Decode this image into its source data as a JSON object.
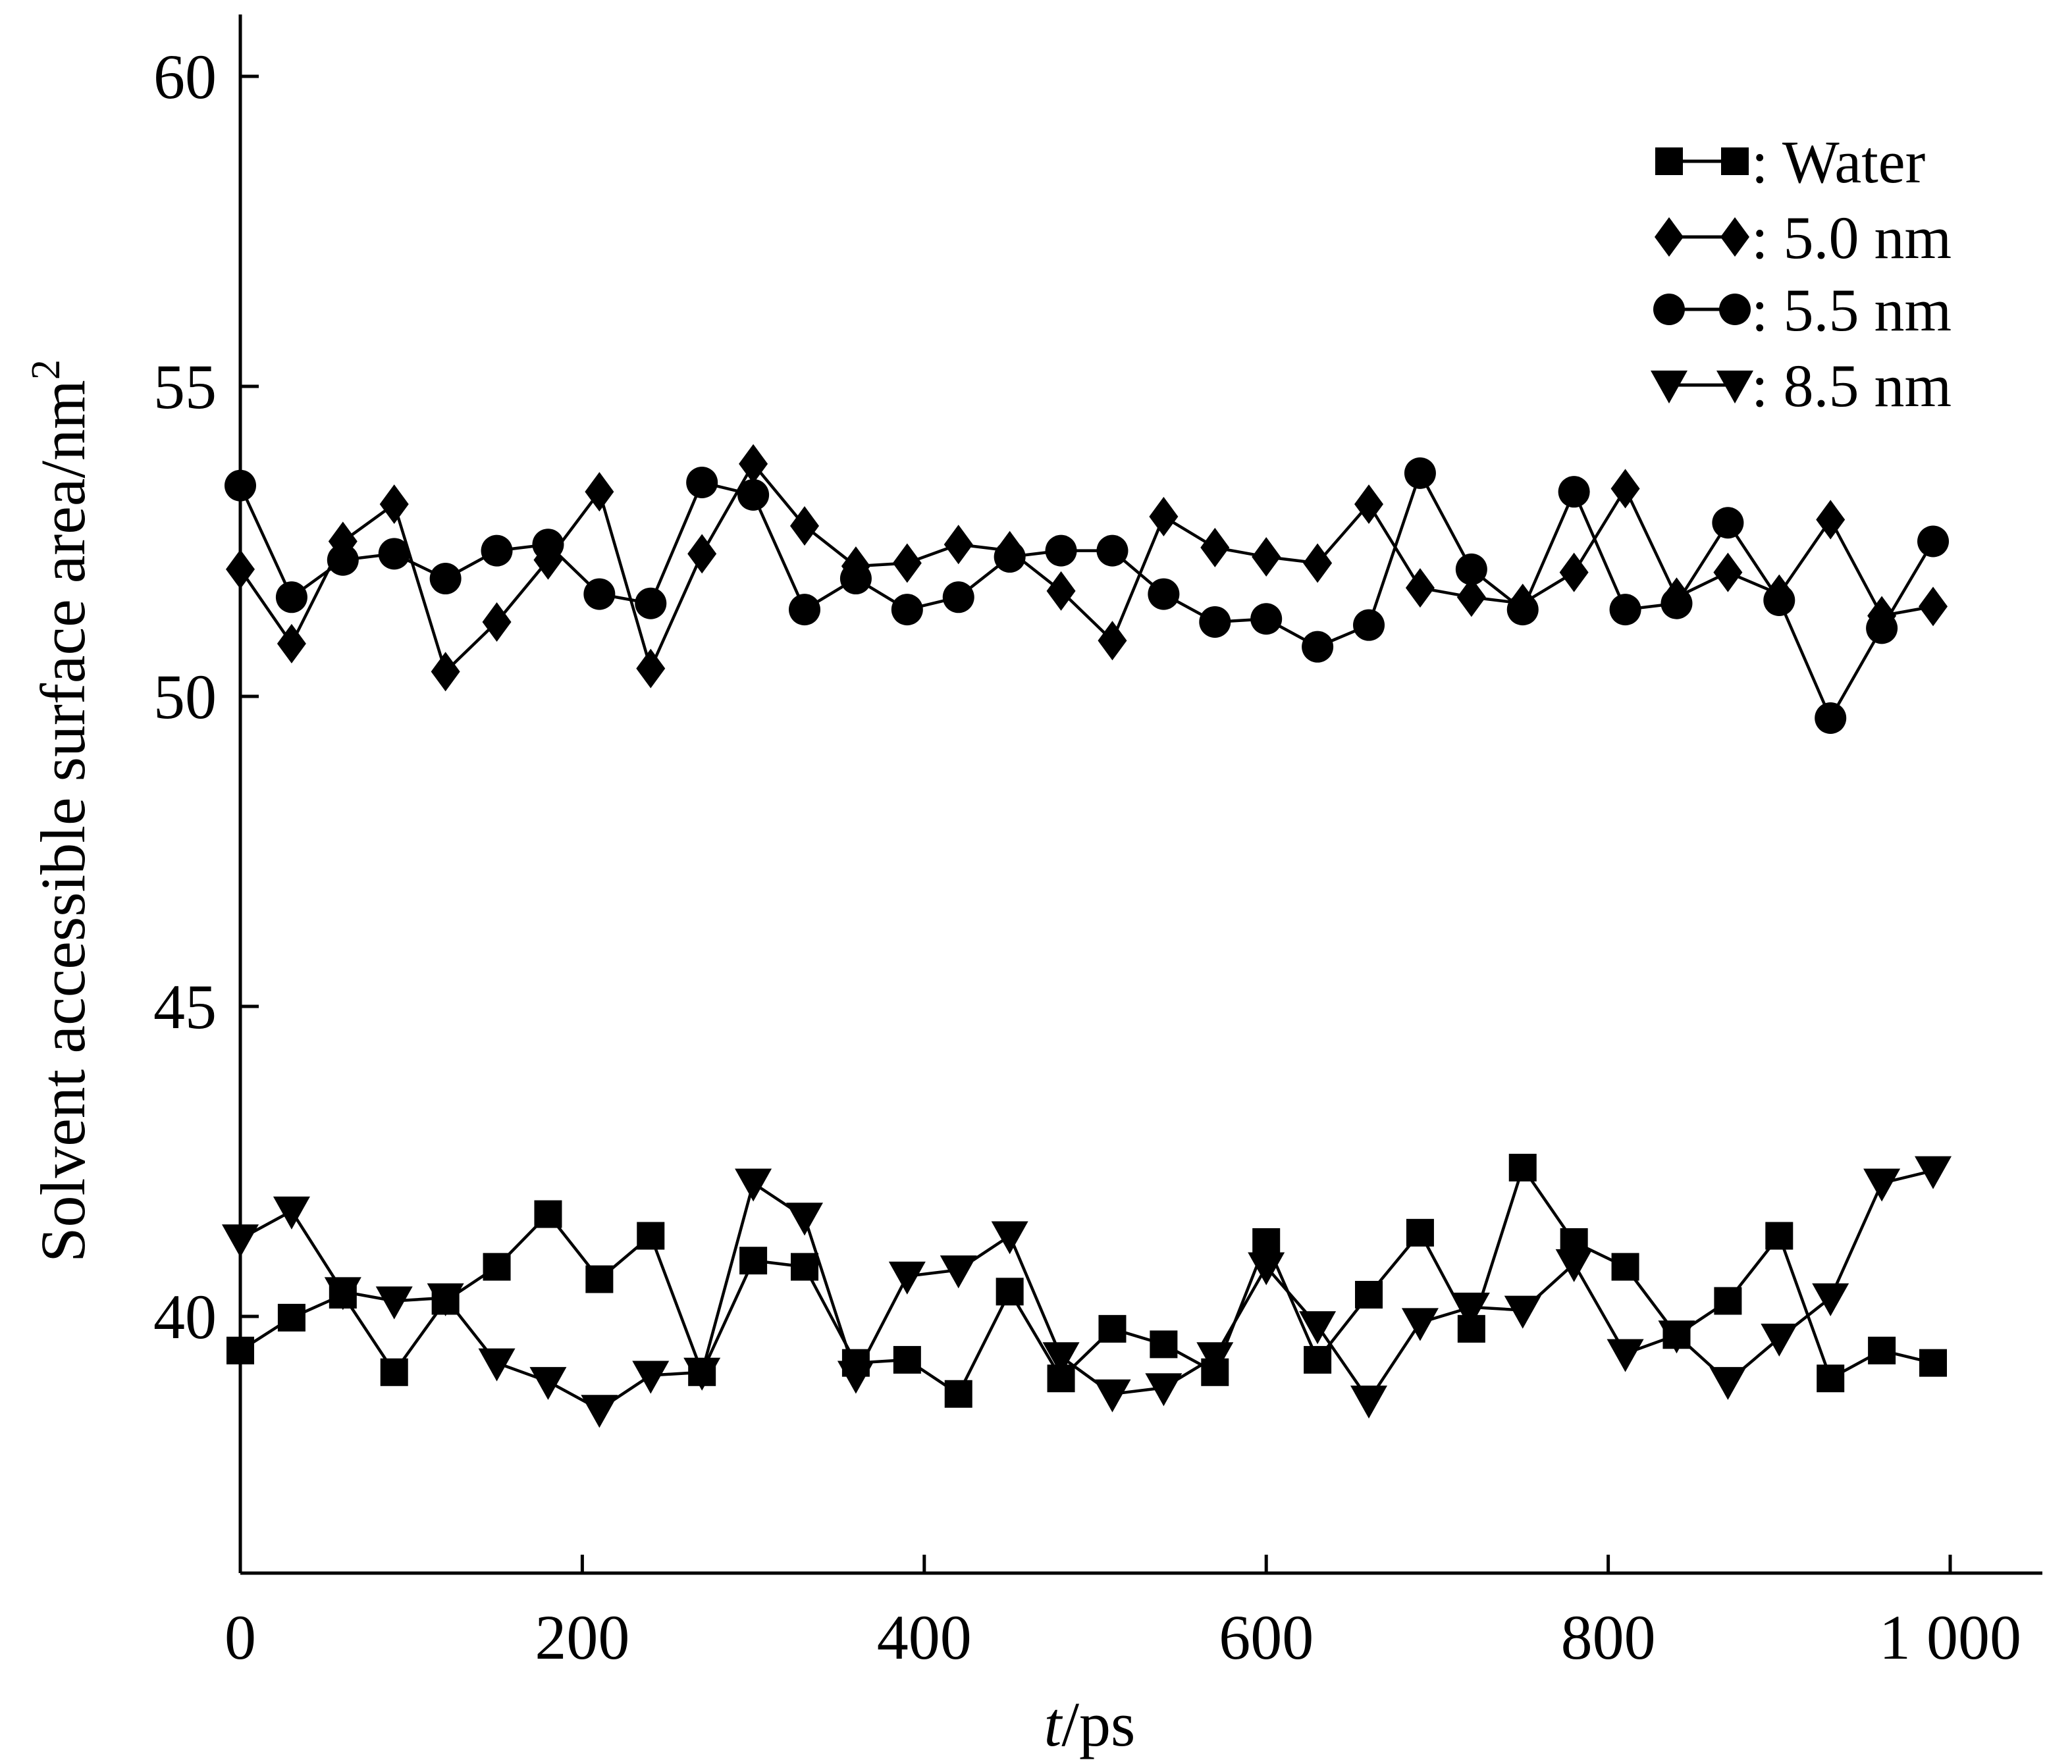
{
  "chart_data": {
    "type": "line",
    "title": "",
    "xlabel_italic": "t",
    "xlabel_rest": "/ps",
    "ylabel": "Solvent accessible surface area/nm",
    "ylabel_sup": "2",
    "xlim": [
      0,
      1050
    ],
    "ylim": [
      36,
      61.2
    ],
    "xticks": [
      0,
      200,
      400,
      600,
      800,
      1000
    ],
    "xtick_labels": [
      "0",
      "200",
      "400",
      "600",
      "800",
      "1 000"
    ],
    "yticks": [
      40,
      45,
      50,
      55,
      60
    ],
    "ytick_labels": [
      "40",
      "45",
      "50",
      "55",
      "60"
    ],
    "grid": false,
    "legend_position": "top-right",
    "x": [
      0,
      30,
      60,
      90,
      120,
      150,
      180,
      210,
      240,
      270,
      300,
      330,
      360,
      390,
      420,
      450,
      480,
      510,
      540,
      570,
      600,
      630,
      660,
      690,
      720,
      750,
      780,
      810,
      840,
      870,
      900,
      930,
      960,
      990
    ],
    "series": [
      {
        "name": ": Water",
        "marker": "square",
        "values": [
          39.45,
          39.98,
          40.35,
          39.1,
          40.25,
          40.8,
          41.65,
          40.6,
          41.3,
          39.1,
          40.9,
          40.8,
          39.25,
          39.3,
          38.75,
          40.4,
          39.0,
          39.8,
          39.55,
          39.1,
          41.2,
          39.3,
          40.35,
          41.35,
          39.8,
          42.4,
          41.2,
          40.8,
          39.7,
          40.25,
          41.3,
          39.0,
          39.45,
          39.25
        ]
      },
      {
        "name": ": 5.0 nm",
        "marker": "diamond",
        "values": [
          52.05,
          50.85,
          52.5,
          53.1,
          50.4,
          51.2,
          52.2,
          53.3,
          50.45,
          52.3,
          53.75,
          52.75,
          52.1,
          52.15,
          52.45,
          52.35,
          51.7,
          50.9,
          52.9,
          52.4,
          52.25,
          52.15,
          53.1,
          51.75,
          51.6,
          51.5,
          52.0,
          53.35,
          51.6,
          52.0,
          51.65,
          52.85,
          51.3,
          51.45
        ]
      },
      {
        "name": ": 5.5 nm",
        "marker": "circle",
        "values": [
          53.4,
          51.6,
          52.2,
          52.3,
          51.9,
          52.35,
          52.45,
          51.65,
          51.5,
          53.45,
          53.25,
          51.4,
          51.9,
          51.4,
          51.6,
          52.25,
          52.35,
          52.35,
          51.65,
          51.2,
          51.25,
          50.8,
          51.15,
          53.6,
          52.05,
          51.4,
          53.3,
          51.4,
          51.5,
          52.8,
          51.55,
          49.65,
          51.1,
          52.5
        ]
      },
      {
        "name": ": 8.5 nm",
        "marker": "triangle-down",
        "values": [
          41.25,
          41.7,
          40.4,
          40.25,
          40.3,
          39.25,
          38.95,
          38.5,
          39.05,
          39.1,
          42.15,
          41.6,
          39.05,
          40.65,
          40.75,
          41.3,
          39.35,
          38.75,
          38.85,
          39.35,
          40.8,
          39.85,
          38.65,
          39.9,
          40.15,
          40.1,
          40.85,
          39.4,
          39.7,
          38.95,
          39.65,
          40.3,
          42.15,
          42.35
        ]
      }
    ]
  }
}
